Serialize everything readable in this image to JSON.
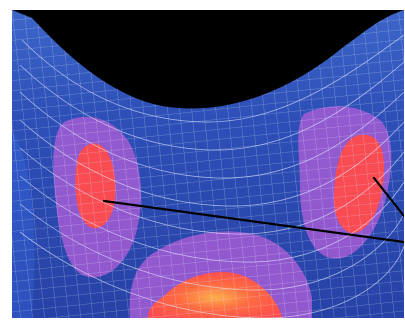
{
  "image": {
    "subject": "mesh-surface-heatmap",
    "colors": {
      "background": "#000000",
      "surface": "#2f4fb8",
      "grid": "#e6ecff",
      "hotspot_mid": "#9b5bd1",
      "hotspot_high": "#ff4b4b",
      "hotspot_peak": "#ff9a3c"
    },
    "annotation_lines": 2
  }
}
